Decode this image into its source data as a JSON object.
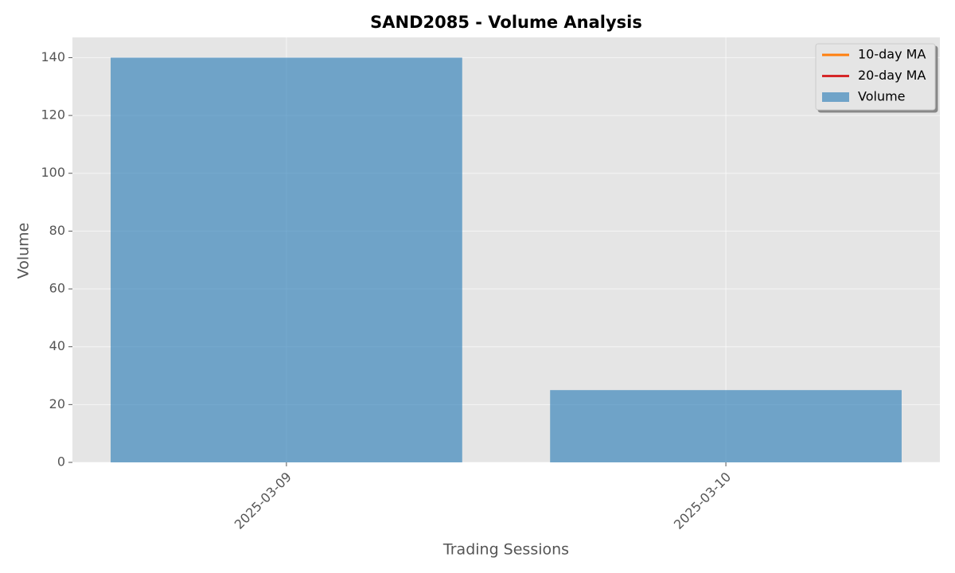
{
  "chart_data": {
    "type": "bar",
    "title": "SAND2085 - Volume Analysis",
    "x_label": "Trading Sessions",
    "y_label": "Volume",
    "categories": [
      "2025-03-09",
      "2025-03-10"
    ],
    "series": [
      {
        "name": "10-day MA",
        "color": "#ff7f0e",
        "type": "line",
        "values": [
          null,
          null
        ]
      },
      {
        "name": "20-day MA",
        "color": "#d62728",
        "type": "line",
        "values": [
          null,
          null
        ]
      },
      {
        "name": "Volume",
        "color": "#1f77b4",
        "type": "bar",
        "values": [
          140,
          25
        ]
      }
    ],
    "ylim": [
      0,
      147
    ],
    "yticks": [
      0,
      20,
      40,
      60,
      80,
      100,
      120,
      140
    ],
    "grid": true,
    "legend": "upper right"
  }
}
